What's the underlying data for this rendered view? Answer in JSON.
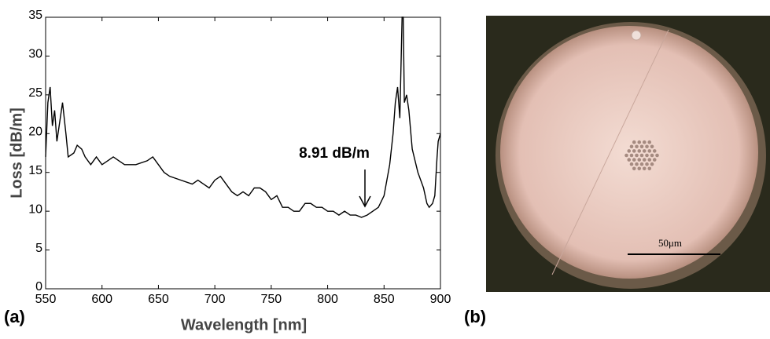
{
  "chart_data": {
    "type": "line",
    "xlabel": "Wavelength [nm]",
    "ylabel": "Loss [dB/m]",
    "annotation": "8.91 dB/m",
    "x": [
      550,
      552,
      554,
      556,
      558,
      560,
      562,
      565,
      568,
      570,
      575,
      578,
      582,
      585,
      590,
      595,
      600,
      605,
      610,
      615,
      620,
      630,
      640,
      645,
      650,
      655,
      660,
      670,
      680,
      685,
      690,
      695,
      700,
      705,
      710,
      715,
      720,
      725,
      730,
      735,
      740,
      745,
      750,
      755,
      760,
      765,
      770,
      775,
      780,
      785,
      790,
      795,
      800,
      805,
      810,
      815,
      820,
      825,
      830,
      835,
      840,
      845,
      850,
      855,
      858,
      860,
      862,
      864,
      866,
      867,
      868,
      870,
      872,
      875,
      880,
      885,
      888,
      890,
      893,
      895,
      897,
      898,
      900
    ],
    "series": [
      {
        "name": "Loss",
        "color": "#000000",
        "values": [
          17,
          24,
          26,
          21,
          23,
          19,
          21,
          24,
          20,
          17,
          17.5,
          18.5,
          18,
          17,
          16,
          17,
          16,
          16.5,
          17,
          16.5,
          16,
          16,
          16.5,
          17,
          16,
          15,
          14.5,
          14,
          13.5,
          14,
          13.5,
          13,
          14,
          14.5,
          13.5,
          12.5,
          12,
          12.5,
          12,
          13,
          13,
          12.5,
          11.5,
          12,
          10.5,
          10.5,
          10,
          10,
          11,
          11,
          10.5,
          10.5,
          10,
          10,
          9.5,
          10,
          9.5,
          9.5,
          9.2,
          9.5,
          10,
          10.5,
          12,
          16,
          20,
          24,
          26,
          22,
          35,
          35,
          24,
          25,
          23,
          18,
          15,
          13,
          11,
          10.5,
          11,
          12,
          17,
          19,
          20
        ]
      }
    ],
    "xlim": [
      550,
      900
    ],
    "ylim": [
      0,
      35
    ],
    "xticks": [
      550,
      600,
      650,
      700,
      750,
      800,
      850,
      900
    ],
    "yticks": [
      0,
      5,
      10,
      15,
      20,
      25,
      30,
      35
    ]
  },
  "panels": [
    "(a)",
    "(b)"
  ],
  "image": {
    "scale_bar_label": "50μm"
  }
}
